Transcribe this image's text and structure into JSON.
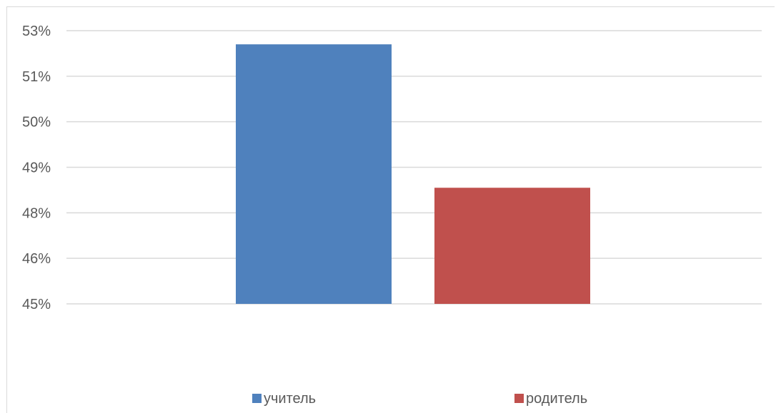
{
  "chart_data": {
    "type": "bar",
    "categories": [
      "учитель",
      "родитель"
    ],
    "y_tick_labels": [
      "45%",
      "46%",
      "48%",
      "49%",
      "50%",
      "51%",
      "53%"
    ],
    "ylim": [
      45,
      53
    ],
    "values": [
      52.6,
      48.4
    ],
    "series": [
      {
        "name": "учитель",
        "value": 52.6,
        "color": "#4f81bd"
      },
      {
        "name": "родитель",
        "value": 48.4,
        "color": "#c0504d"
      }
    ],
    "grid": true,
    "legend": "bottom",
    "title": "",
    "xlabel": "",
    "ylabel": ""
  }
}
